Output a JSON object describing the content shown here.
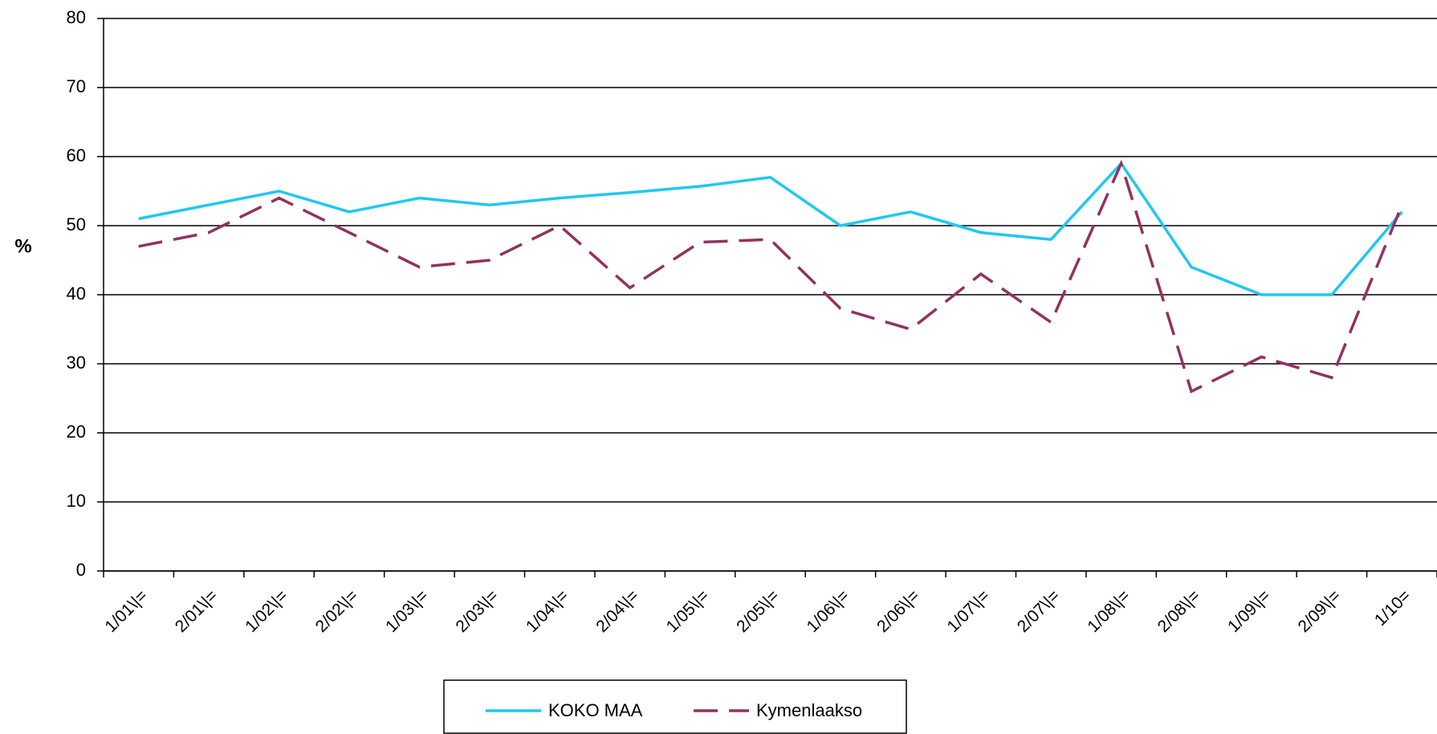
{
  "chart_data": {
    "type": "line",
    "y_label": "%",
    "categories": [
      "1/01\\|=",
      "2/01\\|=",
      "1/02\\|=",
      "2/02\\|=",
      "1/03\\|=",
      "2/03\\|=",
      "1/04\\|=",
      "2/04\\|=",
      "1/05\\|=",
      "2/05\\|=",
      "1/06\\|=",
      "2/06\\|=",
      "1/07\\|=",
      "2/07\\|=",
      "1/08\\|=",
      "2/08\\|=",
      "1/09\\|=",
      "2/09\\|=",
      "1/10="
    ],
    "series": [
      {
        "name": "KOKO MAA",
        "color": "#1fc8f0",
        "line_style": "solid",
        "values": [
          51,
          53,
          55,
          52,
          54,
          53,
          54,
          54.8,
          55.7,
          57,
          50,
          52,
          49,
          48,
          59,
          44,
          40,
          40,
          52
        ]
      },
      {
        "name": "Kymenlaakso",
        "color": "#93315f",
        "line_style": "dashed",
        "values": [
          47,
          49,
          54,
          49,
          44,
          45,
          50,
          41,
          47.6,
          48,
          38,
          35,
          43,
          36,
          59,
          26,
          31,
          28,
          53
        ]
      }
    ],
    "ylim": [
      0,
      80
    ],
    "yticks": [
      0,
      10,
      20,
      30,
      40,
      50,
      60,
      70,
      80
    ],
    "grid": true
  }
}
